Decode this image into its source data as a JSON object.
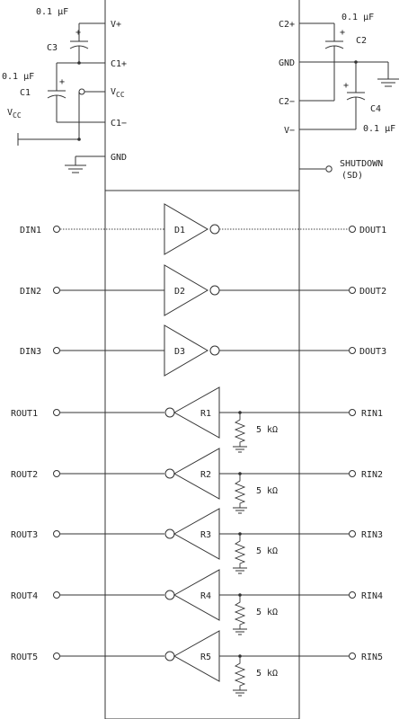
{
  "colors": {
    "line": "#333333",
    "text": "#222222",
    "background": "#ffffff"
  },
  "ic_pins_left": [
    {
      "id": "vplus",
      "label": "V+"
    },
    {
      "id": "c1plus",
      "label": "C1+"
    },
    {
      "id": "vcc",
      "label": "V",
      "sub": "CC"
    },
    {
      "id": "c1minus",
      "label": "C1−"
    },
    {
      "id": "gnd-left",
      "label": "GND"
    }
  ],
  "ic_pins_right": [
    {
      "id": "c2plus",
      "label": "C2+"
    },
    {
      "id": "gnd-right",
      "label": "GND"
    },
    {
      "id": "c2minus",
      "label": "C2−"
    },
    {
      "id": "vminus",
      "label": "V−"
    }
  ],
  "capacitors": [
    {
      "name": "C3",
      "value": "0.1 µF",
      "polarity": "+"
    },
    {
      "name": "C1",
      "value": "0.1 µF",
      "polarity": "+"
    },
    {
      "name": "C2",
      "value": "0.1 µF",
      "polarity": "+"
    },
    {
      "name": "C4",
      "value": "0.1 µF",
      "polarity": "+"
    }
  ],
  "vcc_supply": {
    "label": "V",
    "sub": "CC"
  },
  "shutdown": {
    "line1": "SHUTDOWN",
    "line2": "(SD)"
  },
  "drivers": [
    {
      "input": "DIN1",
      "name": "D1",
      "output": "DOUT1"
    },
    {
      "input": "DIN2",
      "name": "D2",
      "output": "DOUT2"
    },
    {
      "input": "DIN3",
      "name": "D3",
      "output": "DOUT3"
    }
  ],
  "receivers": [
    {
      "output": "ROUT1",
      "name": "R1",
      "input": "RIN1",
      "resistor": "5 kΩ"
    },
    {
      "output": "ROUT2",
      "name": "R2",
      "input": "RIN2",
      "resistor": "5 kΩ"
    },
    {
      "output": "ROUT3",
      "name": "R3",
      "input": "RIN3",
      "resistor": "5 kΩ"
    },
    {
      "output": "ROUT4",
      "name": "R4",
      "input": "RIN4",
      "resistor": "5 kΩ"
    },
    {
      "output": "ROUT5",
      "name": "R5",
      "input": "RIN5",
      "resistor": "5 kΩ"
    }
  ]
}
